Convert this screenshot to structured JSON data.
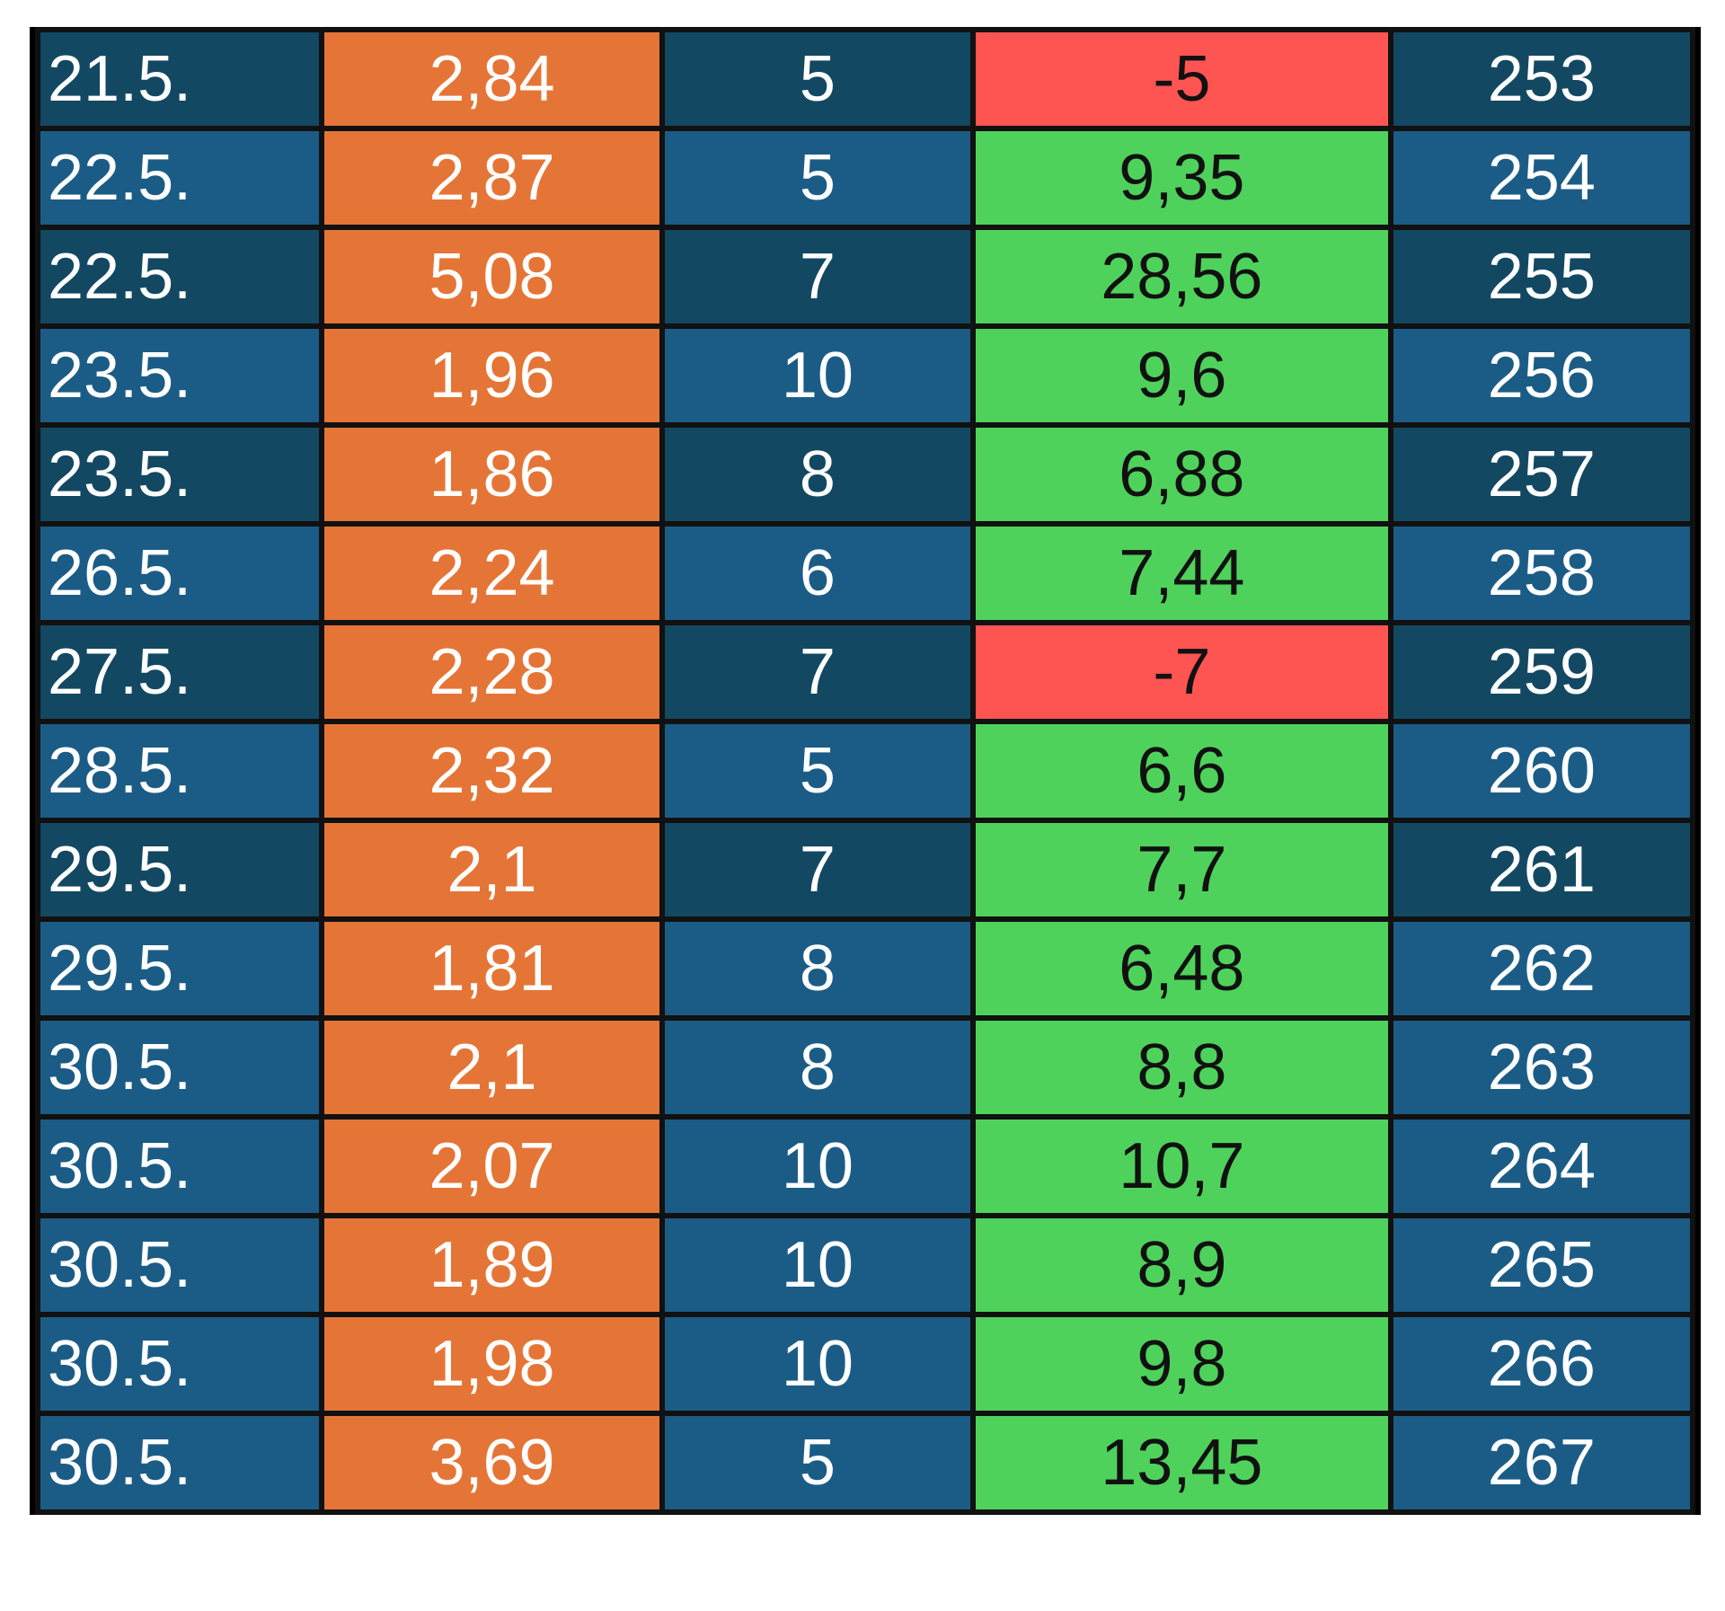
{
  "colors": {
    "row_dark": "#134862",
    "row_light": "#1b5c86",
    "odds": "#e57536",
    "profit_win": "#4fd25b",
    "profit_loss": "#fe5452"
  },
  "rows": [
    {
      "date": "21.5.",
      "odds": "2,84",
      "stake": "5",
      "profit": "-5",
      "id": "253",
      "shade": "dark"
    },
    {
      "date": "22.5.",
      "odds": "2,87",
      "stake": "5",
      "profit": "9,35",
      "id": "254",
      "shade": "light"
    },
    {
      "date": "22.5.",
      "odds": "5,08",
      "stake": "7",
      "profit": "28,56",
      "id": "255",
      "shade": "dark"
    },
    {
      "date": "23.5.",
      "odds": "1,96",
      "stake": "10",
      "profit": "9,6",
      "id": "256",
      "shade": "light"
    },
    {
      "date": "23.5.",
      "odds": "1,86",
      "stake": "8",
      "profit": "6,88",
      "id": "257",
      "shade": "dark"
    },
    {
      "date": "26.5.",
      "odds": "2,24",
      "stake": "6",
      "profit": "7,44",
      "id": "258",
      "shade": "light"
    },
    {
      "date": "27.5.",
      "odds": "2,28",
      "stake": "7",
      "profit": "-7",
      "id": "259",
      "shade": "dark"
    },
    {
      "date": "28.5.",
      "odds": "2,32",
      "stake": "5",
      "profit": "6,6",
      "id": "260",
      "shade": "light"
    },
    {
      "date": "29.5.",
      "odds": "2,1",
      "stake": "7",
      "profit": "7,7",
      "id": "261",
      "shade": "dark"
    },
    {
      "date": "29.5.",
      "odds": "1,81",
      "stake": "8",
      "profit": "6,48",
      "id": "262",
      "shade": "light"
    },
    {
      "date": "30.5.",
      "odds": "2,1",
      "stake": "8",
      "profit": "8,8",
      "id": "263",
      "shade": "light"
    },
    {
      "date": "30.5.",
      "odds": "2,07",
      "stake": "10",
      "profit": "10,7",
      "id": "264",
      "shade": "light"
    },
    {
      "date": "30.5.",
      "odds": "1,89",
      "stake": "10",
      "profit": "8,9",
      "id": "265",
      "shade": "light"
    },
    {
      "date": "30.5.",
      "odds": "1,98",
      "stake": "10",
      "profit": "9,8",
      "id": "266",
      "shade": "light"
    },
    {
      "date": "30.5.",
      "odds": "3,69",
      "stake": "5",
      "profit": "13,45",
      "id": "267",
      "shade": "light"
    }
  ]
}
